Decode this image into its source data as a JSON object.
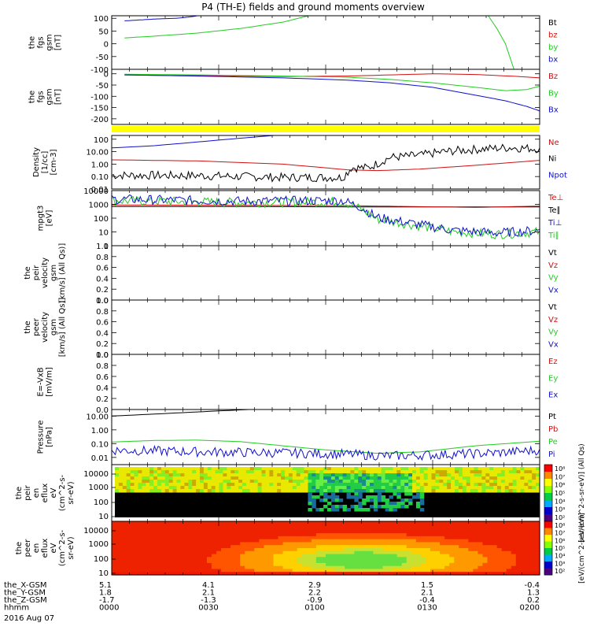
{
  "title": "P4 (TH-E) fields and ground moments overview",
  "date_label": "2016 Aug 07",
  "colors": {
    "black": "#000000",
    "red": "#d01010",
    "green": "#22cc22",
    "blue": "#1010cc",
    "yellow": "#ffff00"
  },
  "chart_data": [
    {
      "type": "line",
      "panel": "fgs_fgm",
      "ylabel": [
        "the",
        "fgs",
        "gsm",
        "[nT]"
      ],
      "ylim": [
        -100,
        110
      ],
      "yticks": [
        100,
        50,
        0,
        -50,
        -100
      ],
      "legend": [
        {
          "label": "Bt",
          "color": "#000000"
        },
        {
          "label": "bz",
          "color": "#d01010"
        },
        {
          "label": "by",
          "color": "#22cc22"
        },
        {
          "label": "bx",
          "color": "#1010cc"
        }
      ],
      "series": [
        {
          "color": "#1010cc",
          "points": [
            [
              0.03,
              90
            ],
            [
              0.07,
              94
            ],
            [
              0.1,
              97
            ],
            [
              0.13,
              99
            ],
            [
              0.15,
              100
            ],
            [
              0.17,
              103
            ],
            [
              0.19,
              107
            ],
            [
              0.2,
              110
            ]
          ]
        },
        {
          "color": "#22cc22",
          "points": [
            [
              0.03,
              23
            ],
            [
              0.1,
              30
            ],
            [
              0.2,
              42
            ],
            [
              0.3,
              60
            ],
            [
              0.4,
              85
            ],
            [
              0.46,
              110
            ]
          ]
        },
        {
          "color": "#22cc22",
          "points": [
            [
              0.88,
              110
            ],
            [
              0.9,
              60
            ],
            [
              0.92,
              0
            ],
            [
              0.93,
              -50
            ],
            [
              0.94,
              -100
            ]
          ]
        }
      ]
    },
    {
      "type": "line",
      "panel": "fgs_gsm",
      "ylabel": [
        "the",
        "fgs",
        "gsm",
        "[nT]"
      ],
      "ylim": [
        -225,
        20
      ],
      "yticks": [
        0,
        -50,
        -100,
        -150,
        -200
      ],
      "legend": [
        {
          "label": "Bz",
          "color": "#d01010"
        },
        {
          "label": "By",
          "color": "#22cc22"
        },
        {
          "label": "Bx",
          "color": "#1010cc"
        }
      ],
      "series": [
        {
          "color": "#d01010",
          "points": [
            [
              0.03,
              -5
            ],
            [
              0.2,
              -8
            ],
            [
              0.4,
              -12
            ],
            [
              0.55,
              -10
            ],
            [
              0.65,
              -5
            ],
            [
              0.75,
              0
            ],
            [
              0.85,
              -3
            ],
            [
              0.95,
              -12
            ],
            [
              1.0,
              -18
            ]
          ]
        },
        {
          "color": "#22cc22",
          "points": [
            [
              0.03,
              -2
            ],
            [
              0.2,
              -5
            ],
            [
              0.4,
              -10
            ],
            [
              0.55,
              -15
            ],
            [
              0.65,
              -25
            ],
            [
              0.75,
              -40
            ],
            [
              0.85,
              -60
            ],
            [
              0.92,
              -75
            ],
            [
              0.97,
              -70
            ],
            [
              1.0,
              -55
            ]
          ]
        },
        {
          "color": "#1010cc",
          "points": [
            [
              0.03,
              -5
            ],
            [
              0.2,
              -10
            ],
            [
              0.4,
              -18
            ],
            [
              0.55,
              -28
            ],
            [
              0.65,
              -40
            ],
            [
              0.75,
              -60
            ],
            [
              0.85,
              -95
            ],
            [
              0.92,
              -120
            ],
            [
              0.97,
              -145
            ],
            [
              1.0,
              -165
            ]
          ]
        }
      ]
    },
    {
      "type": "line",
      "panel": "density",
      "ylabel": [
        "Density",
        "[1/cc]",
        "[cm-3]"
      ],
      "ylim": [
        0.01,
        200
      ],
      "log": true,
      "yticks": [
        100.0,
        10.0,
        1.0,
        0.1,
        0.01
      ],
      "legend": [
        {
          "label": "Ne",
          "color": "#d01010"
        },
        {
          "label": "Ni",
          "color": "#000000"
        },
        {
          "label": "Npot",
          "color": "#1010cc"
        }
      ],
      "series": [
        {
          "color": "#1010cc",
          "points": [
            [
              0.0,
              20
            ],
            [
              0.1,
              30
            ],
            [
              0.2,
              60
            ],
            [
              0.3,
              120
            ],
            [
              0.38,
              200
            ]
          ]
        },
        {
          "color": "#d01010",
          "points": [
            [
              0.0,
              2.2
            ],
            [
              0.2,
              1.8
            ],
            [
              0.4,
              1.0
            ],
            [
              0.5,
              0.5
            ],
            [
              0.55,
              0.35
            ],
            [
              0.62,
              0.3
            ],
            [
              0.72,
              0.4
            ],
            [
              0.85,
              0.8
            ],
            [
              1.0,
              2.0
            ]
          ]
        },
        {
          "color": "#000000",
          "noisy": true,
          "points": [
            [
              0.0,
              0.15
            ],
            [
              0.2,
              0.14
            ],
            [
              0.4,
              0.1
            ],
            [
              0.54,
              0.1
            ],
            [
              0.56,
              0.6
            ],
            [
              0.6,
              0.6
            ],
            [
              0.65,
              4
            ],
            [
              0.72,
              6
            ],
            [
              0.78,
              12
            ],
            [
              0.85,
              18
            ],
            [
              0.93,
              25
            ],
            [
              1.0,
              20
            ]
          ]
        }
      ]
    },
    {
      "type": "line",
      "panel": "temperature",
      "ylabel": [
        "mpgt3",
        "[eV]"
      ],
      "ylim": [
        1,
        10000
      ],
      "log": true,
      "yticks": [
        10000,
        1000,
        100,
        10,
        1
      ],
      "legend": [
        {
          "label": "Te⊥",
          "color": "#d01010"
        },
        {
          "label": "Te∥",
          "color": "#000000"
        },
        {
          "label": "Ti⊥",
          "color": "#1010cc"
        },
        {
          "label": "Ti∥",
          "color": "#22cc22"
        }
      ],
      "series": [
        {
          "color": "#000000",
          "points": [
            [
              0.0,
              700
            ],
            [
              0.3,
              700
            ],
            [
              0.6,
              650
            ],
            [
              1.0,
              650
            ]
          ]
        },
        {
          "color": "#d01010",
          "points": [
            [
              0.0,
              900
            ],
            [
              0.3,
              850
            ],
            [
              0.55,
              800
            ],
            [
              0.7,
              700
            ],
            [
              0.85,
              600
            ],
            [
              1.0,
              750
            ]
          ]
        },
        {
          "color": "#22cc22",
          "noisy": true,
          "points": [
            [
              0.0,
              2200
            ],
            [
              0.3,
              1600
            ],
            [
              0.54,
              1800
            ],
            [
              0.58,
              600
            ],
            [
              0.62,
              100
            ],
            [
              0.7,
              40
            ],
            [
              0.8,
              12
            ],
            [
              0.9,
              8
            ],
            [
              1.0,
              12
            ]
          ]
        },
        {
          "color": "#1010cc",
          "noisy": true,
          "points": [
            [
              0.0,
              2800
            ],
            [
              0.3,
              2000
            ],
            [
              0.54,
              2200
            ],
            [
              0.58,
              800
            ],
            [
              0.62,
              130
            ],
            [
              0.7,
              50
            ],
            [
              0.8,
              15
            ],
            [
              0.9,
              10
            ],
            [
              1.0,
              15
            ]
          ]
        }
      ]
    },
    {
      "type": "line",
      "panel": "peir_velocity",
      "ylabel": [
        "the",
        "peir",
        "velocity",
        "gsm",
        "[km/s] (All Qs)]"
      ],
      "ylim": [
        0,
        1
      ],
      "yticks": [
        1.0,
        0.8,
        0.6,
        0.4,
        0.2,
        0.0
      ],
      "legend": [
        {
          "label": "Vt",
          "color": "#000000"
        },
        {
          "label": "Vz",
          "color": "#d01010"
        },
        {
          "label": "Vy",
          "color": "#22cc22"
        },
        {
          "label": "Vx",
          "color": "#1010cc"
        }
      ],
      "series": []
    },
    {
      "type": "line",
      "panel": "peer_velocity",
      "ylabel": [
        "the",
        "peer",
        "velocity",
        "gsm",
        "[km/s] (All Qs)]"
      ],
      "ylim": [
        0,
        1
      ],
      "yticks": [
        1.0,
        0.8,
        0.6,
        0.4,
        0.2,
        0.0
      ],
      "legend": [
        {
          "label": "Vt",
          "color": "#000000"
        },
        {
          "label": "Vz",
          "color": "#d01010"
        },
        {
          "label": "Vy",
          "color": "#22cc22"
        },
        {
          "label": "Vx",
          "color": "#1010cc"
        }
      ],
      "series": []
    },
    {
      "type": "line",
      "panel": "efield",
      "ylabel": [
        "E=-VxB",
        "[mV/m]"
      ],
      "ylim": [
        0,
        1
      ],
      "yticks": [
        1.0,
        0.8,
        0.6,
        0.4,
        0.2,
        0.0
      ],
      "legend": [
        {
          "label": "Ez",
          "color": "#d01010"
        },
        {
          "label": "Ey",
          "color": "#22cc22"
        },
        {
          "label": "Ex",
          "color": "#1010cc"
        }
      ],
      "series": []
    },
    {
      "type": "line",
      "panel": "pressure",
      "ylabel": [
        "Pressure",
        "[nPa]"
      ],
      "ylim": [
        0.003,
        30
      ],
      "log": true,
      "yticks": [
        10.0,
        1.0,
        0.1,
        0.01
      ],
      "legend": [
        {
          "label": "Pt",
          "color": "#000000"
        },
        {
          "label": "Pb",
          "color": "#d01010"
        },
        {
          "label": "Pe",
          "color": "#22cc22"
        },
        {
          "label": "Pi",
          "color": "#1010cc"
        }
      ],
      "series": [
        {
          "color": "#000000",
          "points": [
            [
              0.0,
              10
            ],
            [
              0.1,
              14
            ],
            [
              0.2,
              20
            ],
            [
              0.32,
              30
            ]
          ]
        },
        {
          "color": "#22cc22",
          "points": [
            [
              0.0,
              0.13
            ],
            [
              0.1,
              0.17
            ],
            [
              0.2,
              0.18
            ],
            [
              0.3,
              0.14
            ],
            [
              0.4,
              0.07
            ],
            [
              0.5,
              0.035
            ],
            [
              0.62,
              0.02
            ],
            [
              0.72,
              0.025
            ],
            [
              0.85,
              0.07
            ],
            [
              1.0,
              0.15
            ]
          ]
        },
        {
          "color": "#1010cc",
          "noisy": true,
          "points": [
            [
              0.0,
              0.04
            ],
            [
              0.2,
              0.03
            ],
            [
              0.4,
              0.025
            ],
            [
              0.55,
              0.02
            ],
            [
              0.65,
              0.015
            ],
            [
              0.8,
              0.02
            ],
            [
              0.9,
              0.025
            ],
            [
              1.0,
              0.04
            ]
          ]
        }
      ]
    },
    {
      "type": "heatmap",
      "panel": "peir_eflux",
      "ylabel": [
        "the",
        "peir",
        "en",
        "eflux",
        "eV",
        "(cm^2-s-",
        "sr-eV)"
      ],
      "yticks": [
        10000,
        1000,
        100,
        10
      ],
      "colorbar_label": "[eV/(cm^2-s-sr-eV)] (All Qs)",
      "colorbar_ticks": [
        "10⁸",
        "10⁷",
        "10⁶",
        "10⁵",
        "10⁴",
        "10³",
        "10²"
      ]
    },
    {
      "type": "heatmap",
      "panel": "peer_eflux",
      "ylabel": [
        "the",
        "peer",
        "en",
        "eflux",
        "eV",
        "(cm^2-s-",
        "sr-eV)"
      ],
      "yticks": [
        10000,
        1000,
        100,
        10
      ],
      "colorbar_label": "[eV/(cm^2-s-sr-eV)]",
      "colorbar_ticks": [
        "10⁸",
        "10⁷",
        "10⁶",
        "10⁵",
        "10⁴",
        "10³",
        "10²"
      ]
    }
  ],
  "xaxis": {
    "rows": [
      {
        "label": "the_X-GSM",
        "values": [
          "5.1",
          "4.1",
          "2.9",
          "1.5",
          "-0.4"
        ]
      },
      {
        "label": "the_Y-GSM",
        "values": [
          "1.8",
          "2.1",
          "2.2",
          "2.1",
          "1.3"
        ]
      },
      {
        "label": "the_Z-GSM",
        "values": [
          "-1.7",
          "-1.3",
          "-0.9",
          "-0.4",
          "0.2"
        ]
      },
      {
        "label": "hhmm",
        "values": [
          "0000",
          "0030",
          "0100",
          "0130",
          "0200"
        ]
      }
    ]
  }
}
